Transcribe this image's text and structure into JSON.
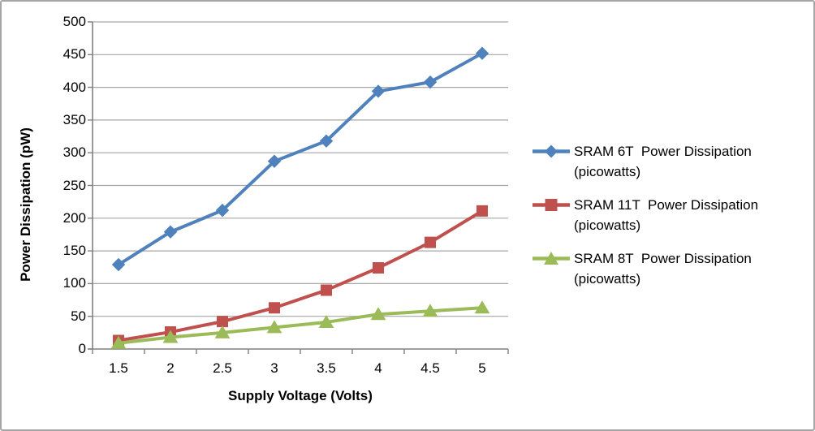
{
  "chart_data": {
    "type": "line",
    "title": "",
    "xlabel": "Supply Voltage (Volts)",
    "ylabel": "Power Dissipation (pW)",
    "x": [
      1.5,
      2,
      2.5,
      3,
      3.5,
      4,
      4.5,
      5
    ],
    "x_tick_labels": [
      "1.5",
      "2",
      "2.5",
      "3",
      "3.5",
      "4",
      "4.5",
      "5"
    ],
    "y_tick_labels": [
      "0",
      "50",
      "100",
      "150",
      "200",
      "250",
      "300",
      "350",
      "400",
      "450",
      "500"
    ],
    "ylim": [
      0,
      500
    ],
    "ytick_step": 50,
    "grid": true,
    "legend_position": "right",
    "series": [
      {
        "name": "SRAM 6T  Power Dissipation (picowatts)",
        "marker": "diamond",
        "color": "#4F81BD",
        "values": [
          129,
          179,
          212,
          287,
          318,
          394,
          408,
          452
        ]
      },
      {
        "name": "SRAM 11T  Power Dissipation (picowatts)",
        "marker": "square",
        "color": "#C0504D",
        "values": [
          13,
          26,
          42,
          63,
          90,
          124,
          163,
          211
        ]
      },
      {
        "name": "SRAM 8T  Power Dissipation (picowatts)",
        "marker": "triangle",
        "color": "#9BBB59",
        "values": [
          9,
          18,
          25,
          33,
          41,
          53,
          58,
          63
        ]
      }
    ]
  },
  "legend": {
    "items": [
      {
        "line1": "SRAM 6T  Power Dissipation",
        "line2": "(picowatts)",
        "marker": "diamond",
        "color": "#4F81BD"
      },
      {
        "line1": "SRAM 11T  Power Dissipation",
        "line2": "(picowatts)",
        "marker": "square",
        "color": "#C0504D"
      },
      {
        "line1": "SRAM 8T  Power Dissipation",
        "line2": "(picowatts)",
        "marker": "triangle",
        "color": "#9BBB59"
      }
    ]
  },
  "colors": {
    "gridline": "#A6A6A6",
    "axis": "#808080",
    "text": "#000000",
    "background": "#FFFFFF",
    "border": "#A6A6A6"
  }
}
